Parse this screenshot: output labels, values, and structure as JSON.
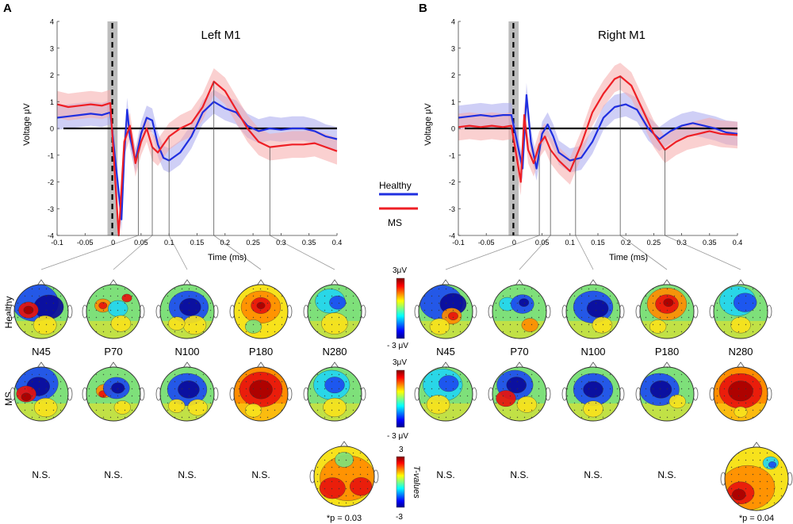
{
  "figure": {
    "panels": [
      "A",
      "B"
    ],
    "row_labels": [
      "Healthy",
      "MS"
    ],
    "legend": [
      {
        "name": "Healthy",
        "color": "#1f2fe0"
      },
      {
        "name": "MS",
        "color": "#ee1f25"
      }
    ],
    "colorbars": [
      {
        "top": "3μV",
        "bottom": "- 3 μV"
      },
      {
        "top": "3μV",
        "bottom": "- 3 μV"
      },
      {
        "top": "3",
        "bottom": "-3",
        "label": "T-values"
      }
    ],
    "components": [
      "N45",
      "P70",
      "N100",
      "P180",
      "N280"
    ],
    "stats": {
      "left": [
        "N.S.",
        "N.S.",
        "N.S.",
        "N.S.",
        "*p = 0.03"
      ],
      "right": [
        "N.S.",
        "N.S.",
        "N.S.",
        "N.S.",
        "*p = 0.04"
      ]
    }
  },
  "chart_data": [
    {
      "type": "line",
      "panel": "A",
      "title": "Left M1",
      "xlabel": "Time (ms)",
      "ylabel": "Voltage μV",
      "xlim": [
        -0.1,
        0.4
      ],
      "ylim": [
        -4,
        4
      ],
      "xticks": [
        -0.1,
        -0.05,
        0,
        0.05,
        0.1,
        0.15,
        0.2,
        0.25,
        0.3,
        0.35,
        0.4
      ],
      "xtick_labels": [
        "-0.1",
        "-0.05",
        "0",
        "0.05",
        "0.1",
        "0.15",
        "0.2",
        "0.25",
        "0.3",
        "0.35",
        "0.4"
      ],
      "yticks": [
        -4,
        -3,
        -2,
        -1,
        0,
        1,
        2,
        3,
        4
      ],
      "shaded_window": [
        -0.01,
        0.008
      ],
      "marker_times": [
        0.045,
        0.07,
        0.1,
        0.18,
        0.28
      ],
      "series": [
        {
          "name": "Healthy",
          "color": "#1f2fe0",
          "band_color": "#a8a8ee",
          "band": 0.45,
          "x": [
            -0.1,
            -0.08,
            -0.06,
            -0.04,
            -0.02,
            -0.005,
            0.015,
            0.02,
            0.025,
            0.03,
            0.04,
            0.05,
            0.06,
            0.07,
            0.08,
            0.09,
            0.1,
            0.12,
            0.14,
            0.16,
            0.18,
            0.2,
            0.22,
            0.24,
            0.26,
            0.28,
            0.3,
            0.32,
            0.34,
            0.36,
            0.38,
            0.4
          ],
          "y": [
            0.4,
            0.45,
            0.5,
            0.55,
            0.5,
            0.6,
            -3.4,
            -1.0,
            0.7,
            -0.3,
            -1.2,
            -0.2,
            0.4,
            0.3,
            -0.6,
            -1.1,
            -1.2,
            -0.9,
            -0.3,
            0.6,
            1.0,
            0.75,
            0.6,
            0.1,
            -0.1,
            0.0,
            -0.05,
            0.0,
            0.0,
            -0.1,
            -0.3,
            -0.4
          ]
        },
        {
          "name": "MS",
          "color": "#ee1f25",
          "band_color": "#f5a9a9",
          "band": 0.5,
          "x": [
            -0.1,
            -0.08,
            -0.06,
            -0.04,
            -0.02,
            -0.005,
            0.01,
            0.02,
            0.03,
            0.04,
            0.05,
            0.06,
            0.07,
            0.08,
            0.09,
            0.1,
            0.12,
            0.14,
            0.16,
            0.18,
            0.2,
            0.22,
            0.24,
            0.26,
            0.28,
            0.3,
            0.32,
            0.34,
            0.36,
            0.38,
            0.4
          ],
          "y": [
            0.9,
            0.8,
            0.85,
            0.9,
            0.85,
            0.95,
            -4.0,
            -0.5,
            0.1,
            -1.3,
            -0.5,
            0.0,
            -0.7,
            -0.9,
            -0.6,
            -0.3,
            0.0,
            0.2,
            0.8,
            1.75,
            1.4,
            0.7,
            0.0,
            -0.5,
            -0.7,
            -0.65,
            -0.6,
            -0.6,
            -0.55,
            -0.7,
            -0.85
          ]
        }
      ]
    },
    {
      "type": "line",
      "panel": "B",
      "title": "Right M1",
      "xlabel": "Time (ms)",
      "ylabel": "Voltage μV",
      "xlim": [
        -0.1,
        0.4
      ],
      "ylim": [
        -4,
        4
      ],
      "xticks": [
        -0.1,
        -0.05,
        0,
        0.05,
        0.1,
        0.15,
        0.2,
        0.25,
        0.3,
        0.35,
        0.4
      ],
      "xtick_labels": [
        "-0.1",
        "-0.05",
        "0",
        "0.05",
        "0.1",
        "0.15",
        "0.2",
        "0.25",
        "0.3",
        "0.35",
        "0.4"
      ],
      "yticks": [
        -4,
        -3,
        -2,
        -1,
        0,
        1,
        2,
        3,
        4
      ],
      "shaded_window": [
        -0.01,
        0.008
      ],
      "marker_times": [
        0.045,
        0.065,
        0.11,
        0.19,
        0.27
      ],
      "series": [
        {
          "name": "Healthy",
          "color": "#1f2fe0",
          "band_color": "#a8a8ee",
          "band": 0.45,
          "x": [
            -0.1,
            -0.08,
            -0.06,
            -0.04,
            -0.02,
            -0.005,
            0.015,
            0.022,
            0.03,
            0.04,
            0.05,
            0.06,
            0.07,
            0.08,
            0.1,
            0.12,
            0.14,
            0.16,
            0.18,
            0.2,
            0.22,
            0.24,
            0.26,
            0.28,
            0.3,
            0.32,
            0.34,
            0.36,
            0.38,
            0.4
          ],
          "y": [
            0.4,
            0.45,
            0.5,
            0.45,
            0.5,
            0.5,
            -1.5,
            1.25,
            -0.5,
            -1.5,
            -0.2,
            0.15,
            -0.3,
            -0.9,
            -1.2,
            -1.1,
            -0.5,
            0.4,
            0.8,
            0.9,
            0.7,
            0.0,
            -0.4,
            -0.1,
            0.1,
            0.2,
            0.1,
            0.0,
            -0.15,
            -0.2
          ]
        },
        {
          "name": "MS",
          "color": "#ee1f25",
          "band_color": "#f5a9a9",
          "band": 0.5,
          "x": [
            -0.1,
            -0.08,
            -0.06,
            -0.04,
            -0.02,
            -0.005,
            0.012,
            0.018,
            0.025,
            0.035,
            0.045,
            0.055,
            0.065,
            0.08,
            0.1,
            0.12,
            0.14,
            0.16,
            0.18,
            0.19,
            0.21,
            0.23,
            0.25,
            0.27,
            0.29,
            0.31,
            0.33,
            0.35,
            0.37,
            0.4
          ],
          "y": [
            0.05,
            0.1,
            0.05,
            0.1,
            0.05,
            0.1,
            -2.0,
            0.5,
            -0.8,
            -1.3,
            -0.6,
            -0.3,
            -0.8,
            -1.2,
            -1.6,
            -0.6,
            0.6,
            1.3,
            1.85,
            1.95,
            1.6,
            0.7,
            -0.2,
            -0.8,
            -0.5,
            -0.3,
            -0.2,
            -0.1,
            -0.2,
            -0.25
          ]
        }
      ]
    }
  ]
}
